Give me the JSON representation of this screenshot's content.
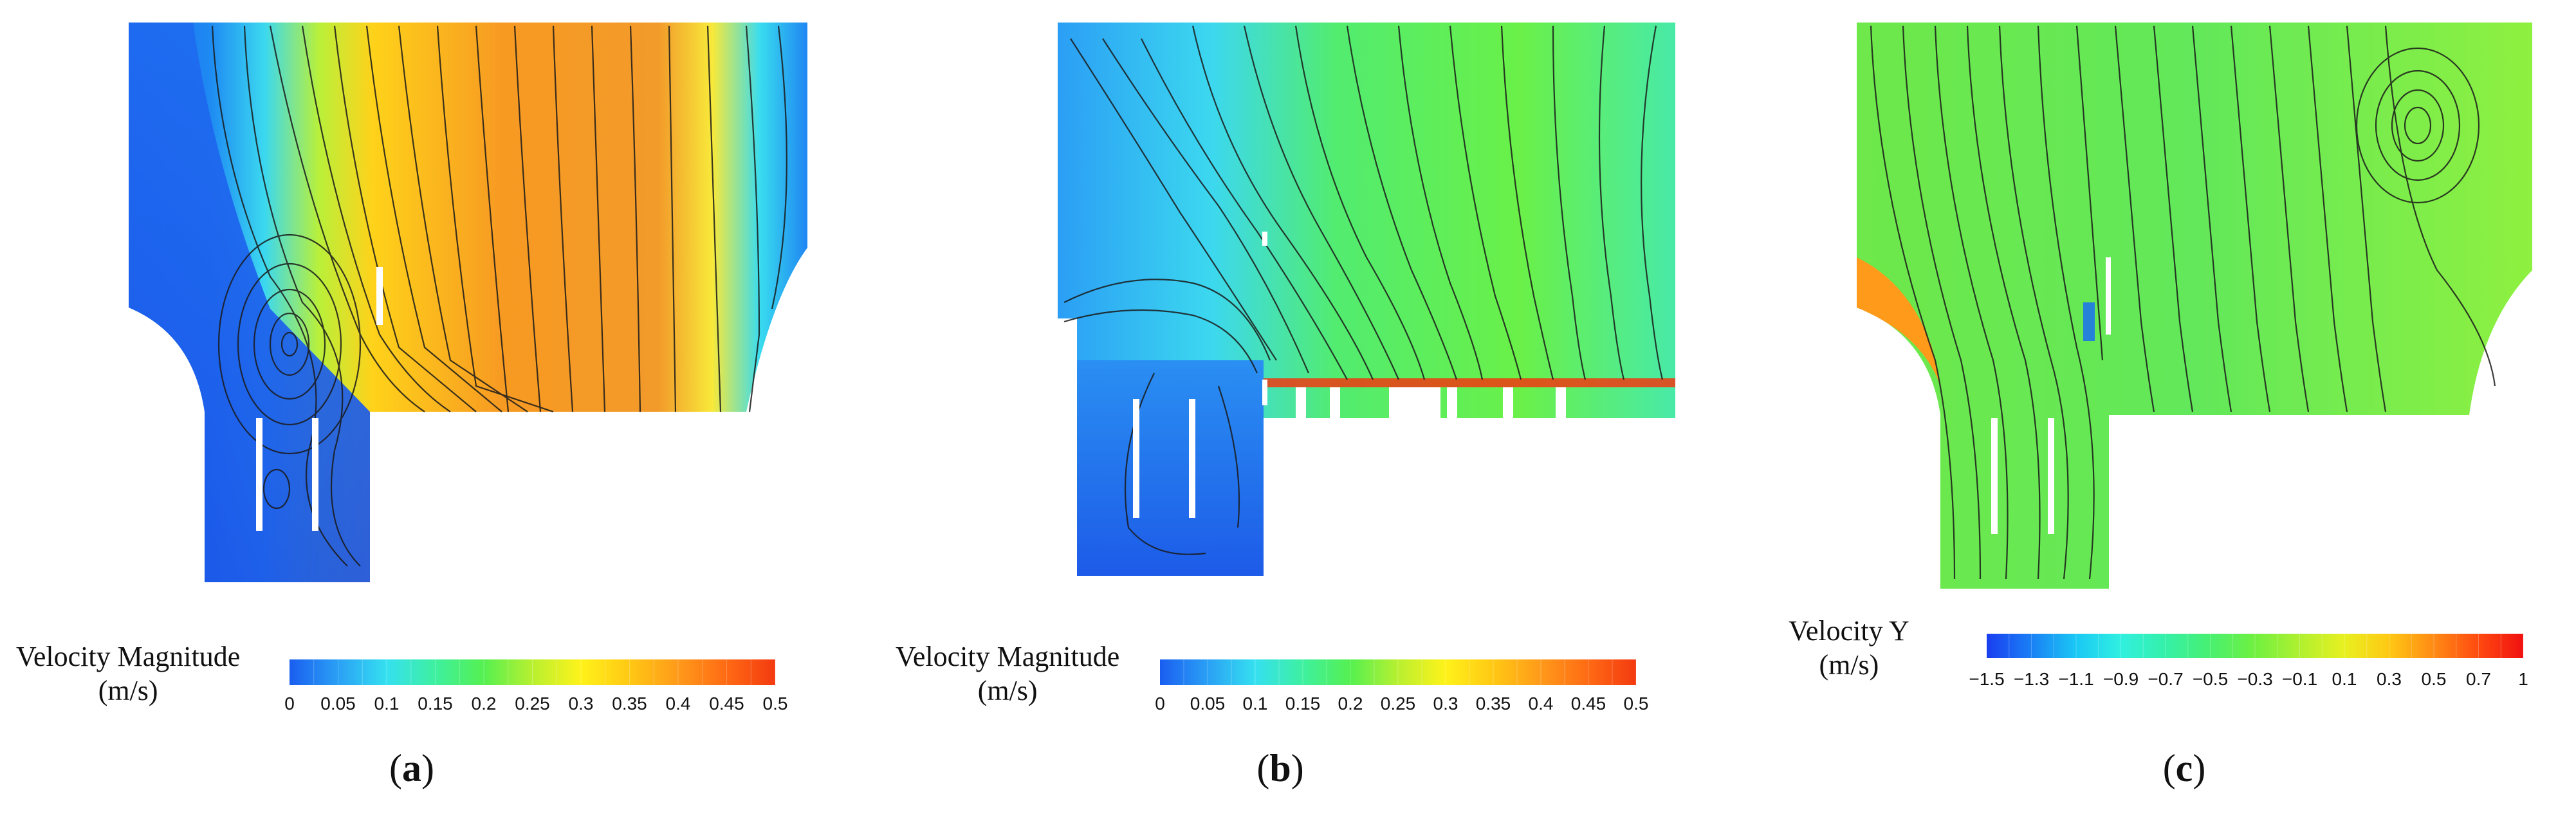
{
  "panels": [
    {
      "id": "a",
      "caption_letter": "a",
      "colorbar": {
        "title_line1": "Velocity Magnitude",
        "title_line2": "(m/s)",
        "ticks": [
          "0",
          "0.05",
          "0.1",
          "0.15",
          "0.2",
          "0.25",
          "0.3",
          "0.35",
          "0.4",
          "0.45",
          "0.5"
        ],
        "colors": [
          "#1a5ef0",
          "#2aa0f5",
          "#35e0f0",
          "#3ef0a0",
          "#55f050",
          "#b8f030",
          "#fff21a",
          "#ffc814",
          "#ff9a1a",
          "#ff6a14",
          "#f33a10"
        ]
      }
    },
    {
      "id": "b",
      "caption_letter": "b",
      "colorbar": {
        "title_line1": "Velocity Magnitude",
        "title_line2": "(m/s)",
        "ticks": [
          "0",
          "0.05",
          "0.1",
          "0.15",
          "0.2",
          "0.25",
          "0.3",
          "0.35",
          "0.4",
          "0.45",
          "0.5"
        ],
        "colors": [
          "#1a5ef0",
          "#2aa0f5",
          "#35e0f0",
          "#3ef0a0",
          "#55f050",
          "#b8f030",
          "#fff21a",
          "#ffc814",
          "#ff9a1a",
          "#ff6a14",
          "#f33a10"
        ]
      }
    },
    {
      "id": "c",
      "caption_letter": "c",
      "colorbar": {
        "title_line1": "Velocity Y",
        "title_line2": "(m/s)",
        "ticks": [
          "−1.5",
          "−1.3",
          "−1.1",
          "−0.9",
          "−0.7",
          "−0.5",
          "−0.3",
          "−0.1",
          "0.1",
          "0.3",
          "0.5",
          "0.7",
          "1"
        ],
        "colors": [
          "#1a3ef0",
          "#1a80f5",
          "#1ac8f5",
          "#30f0e0",
          "#35f0a8",
          "#48f070",
          "#70f040",
          "#b0f030",
          "#e8f020",
          "#ffc814",
          "#ff8a14",
          "#ff4a10",
          "#f01010"
        ]
      }
    }
  ]
}
